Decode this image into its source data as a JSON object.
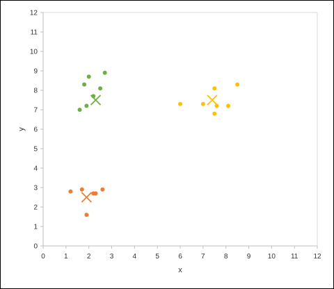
{
  "chart_data": {
    "type": "scatter",
    "xlabel": "x",
    "ylabel": "y",
    "xlim": [
      0,
      12
    ],
    "ylim": [
      0,
      12
    ],
    "xticks": [
      0,
      1,
      2,
      3,
      4,
      5,
      6,
      7,
      8,
      9,
      10,
      11,
      12
    ],
    "yticks": [
      0,
      1,
      2,
      3,
      4,
      5,
      6,
      7,
      8,
      9,
      10,
      11,
      12
    ],
    "grid": false,
    "series": [
      {
        "color": "#70AD47",
        "marker": "circle",
        "points": [
          [
            1.6,
            7.0
          ],
          [
            1.9,
            7.2
          ],
          [
            2.2,
            7.7
          ],
          [
            2.5,
            8.1
          ],
          [
            1.8,
            8.3
          ],
          [
            2.0,
            8.7
          ],
          [
            2.7,
            8.9
          ]
        ]
      },
      {
        "color": "#ED7D31",
        "marker": "circle",
        "points": [
          [
            1.2,
            2.8
          ],
          [
            1.7,
            2.9
          ],
          [
            2.2,
            2.7
          ],
          [
            2.3,
            2.7
          ],
          [
            2.6,
            2.9
          ],
          [
            1.9,
            1.6
          ]
        ]
      },
      {
        "color": "#FFC000",
        "marker": "circle",
        "points": [
          [
            6.0,
            7.3
          ],
          [
            7.0,
            7.3
          ],
          [
            7.5,
            8.1
          ],
          [
            7.6,
            7.2
          ],
          [
            7.5,
            6.8
          ],
          [
            8.1,
            7.2
          ],
          [
            8.5,
            8.3
          ]
        ]
      },
      {
        "color": "#70AD47",
        "marker": "x",
        "points": [
          [
            2.3,
            7.5
          ]
        ]
      },
      {
        "color": "#ED7D31",
        "marker": "x",
        "points": [
          [
            1.9,
            2.5
          ]
        ]
      },
      {
        "color": "#FFC000",
        "marker": "x",
        "points": [
          [
            7.4,
            7.5
          ]
        ]
      }
    ]
  }
}
